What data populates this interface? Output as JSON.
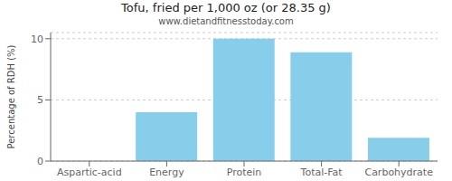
{
  "chart_data": {
    "type": "bar",
    "title": "Tofu, fried per 1,000 oz (or 28.35 g)",
    "subtitle": "www.dietandfitnesstoday.com",
    "categories": [
      "Aspartic-acid",
      "Energy",
      "Protein",
      "Total-Fat",
      "Carbohydrate"
    ],
    "values": [
      0,
      4.0,
      10.0,
      8.9,
      1.9
    ],
    "color": "#87CEEB",
    "ylabel": "Percentage of RDH (%)",
    "ylim": [
      0,
      10.5
    ],
    "yticks": [
      0,
      5,
      10
    ],
    "grid": true
  }
}
